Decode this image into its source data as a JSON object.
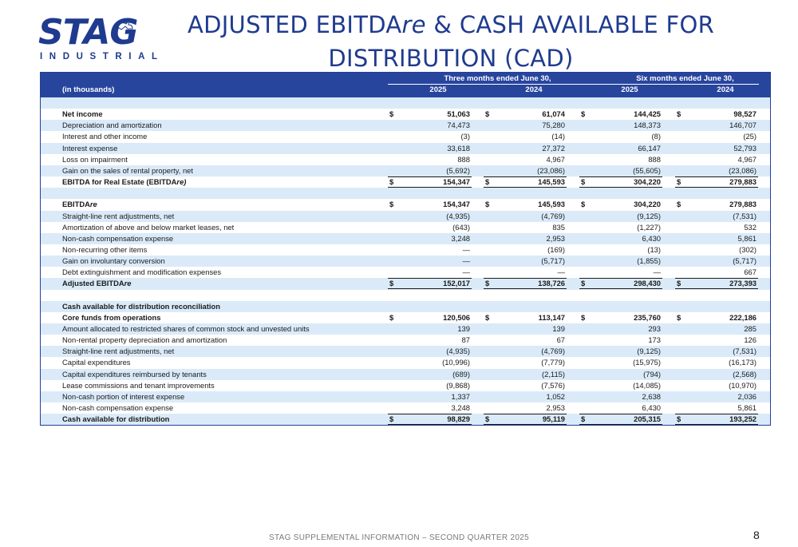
{
  "logo": {
    "word": "STAG",
    "sub": "INDUSTRIAL"
  },
  "title": {
    "line1_a": "ADJUSTED EBITDA",
    "line1_it": "re",
    "line1_b": " & CASH AVAILABLE FOR",
    "line2": "DISTRIBUTION (CAD)"
  },
  "header": {
    "in_thousands": "(in thousands)",
    "three_months": "Three months ended June 30,",
    "six_months": "Six months ended June 30,",
    "years": [
      "2025",
      "2024",
      "2025",
      "2024"
    ]
  },
  "rows": [
    {
      "label": "",
      "type": "spacer",
      "shade": true
    },
    {
      "label": "Net income",
      "bold": true,
      "dollar": true,
      "values": [
        "51,063",
        "61,074",
        "144,425",
        "98,527"
      ]
    },
    {
      "label": "Depreciation and amortization",
      "shade": true,
      "values": [
        "74,473",
        "75,280",
        "148,373",
        "146,707"
      ]
    },
    {
      "label": "Interest and other income",
      "values": [
        "(3)",
        "(14)",
        "(8)",
        "(25)"
      ]
    },
    {
      "label": "Interest expense",
      "shade": true,
      "values": [
        "33,618",
        "27,372",
        "66,147",
        "52,793"
      ]
    },
    {
      "label": "Loss on impairment",
      "values": [
        "888",
        "4,967",
        "888",
        "4,967"
      ]
    },
    {
      "label": "Gain on the sales of rental property, net",
      "shade": true,
      "values": [
        "(5,692)",
        "(23,086)",
        "(55,605)",
        "(23,086)"
      ]
    },
    {
      "label": "EBITDA for Real Estate (EBITDA",
      "label_it": "re",
      "label_end": ")",
      "bold": true,
      "dollar": true,
      "total": true,
      "values": [
        "154,347",
        "145,593",
        "304,220",
        "279,883"
      ]
    },
    {
      "label": "",
      "type": "spacer",
      "shade": true
    },
    {
      "label": "EBITDA",
      "label_it": "re",
      "bold": true,
      "dollar": true,
      "values": [
        "154,347",
        "145,593",
        "304,220",
        "279,883"
      ]
    },
    {
      "label": "Straight-line rent adjustments, net",
      "shade": true,
      "values": [
        "(4,935)",
        "(4,769)",
        "(9,125)",
        "(7,531)"
      ]
    },
    {
      "label": "Amortization of above and below market leases, net",
      "values": [
        "(643)",
        "835",
        "(1,227)",
        "532"
      ]
    },
    {
      "label": "Non-cash compensation expense",
      "shade": true,
      "values": [
        "3,248",
        "2,953",
        "6,430",
        "5,861"
      ]
    },
    {
      "label": "Non-recurring other items",
      "values": [
        "—",
        "(169)",
        "(13)",
        "(302)"
      ]
    },
    {
      "label": "Gain on involuntary conversion",
      "shade": true,
      "values": [
        "—",
        "(5,717)",
        "(1,855)",
        "(5,717)"
      ]
    },
    {
      "label": "Debt extinguishment and modification expenses",
      "values": [
        "—",
        "—",
        "—",
        "667"
      ]
    },
    {
      "label": "Adjusted EBITDA",
      "label_it": "re",
      "bold": true,
      "dollar": true,
      "total": true,
      "shade": true,
      "values": [
        "152,017",
        "138,726",
        "298,430",
        "273,393"
      ]
    },
    {
      "label": "",
      "type": "spacer"
    },
    {
      "label": "Cash available for distribution reconciliation",
      "bold": true,
      "shade": true,
      "values": [
        "",
        "",
        "",
        ""
      ]
    },
    {
      "label": "Core funds from operations",
      "bold": true,
      "dollar": true,
      "values": [
        "120,506",
        "113,147",
        "235,760",
        "222,186"
      ]
    },
    {
      "label": "Amount allocated to restricted shares of common stock and unvested units",
      "shade": true,
      "values": [
        "139",
        "139",
        "293",
        "285"
      ]
    },
    {
      "label": "Non-rental property depreciation and amortization",
      "values": [
        "87",
        "67",
        "173",
        "126"
      ]
    },
    {
      "label": "Straight-line rent adjustments, net",
      "shade": true,
      "values": [
        "(4,935)",
        "(4,769)",
        "(9,125)",
        "(7,531)"
      ]
    },
    {
      "label": "Capital expenditures",
      "values": [
        "(10,996)",
        "(7,779)",
        "(15,975)",
        "(16,173)"
      ]
    },
    {
      "label": "Capital expenditures reimbursed by tenants",
      "shade": true,
      "values": [
        "(689)",
        "(2,115)",
        "(794)",
        "(2,568)"
      ]
    },
    {
      "label": "Lease commissions and tenant improvements",
      "values": [
        "(9,868)",
        "(7,576)",
        "(14,085)",
        "(10,970)"
      ]
    },
    {
      "label": "Non-cash portion of interest expense",
      "shade": true,
      "values": [
        "1,337",
        "1,052",
        "2,638",
        "2,036"
      ]
    },
    {
      "label": "Non-cash compensation expense",
      "values": [
        "3,248",
        "2,953",
        "6,430",
        "5,861"
      ]
    },
    {
      "label": "Cash available for distribution",
      "bold": true,
      "dollar": true,
      "total": true,
      "shade": true,
      "values": [
        "98,829",
        "95,119",
        "205,315",
        "193,252"
      ]
    }
  ],
  "footer": {
    "text": "STAG SUPPLEMENTAL INFORMATION – SECOND QUARTER 2025",
    "page": "8"
  },
  "colors": {
    "brand": "#1f3b8f",
    "header_bg": "#28459e",
    "row_shade": "#daeaf8"
  }
}
